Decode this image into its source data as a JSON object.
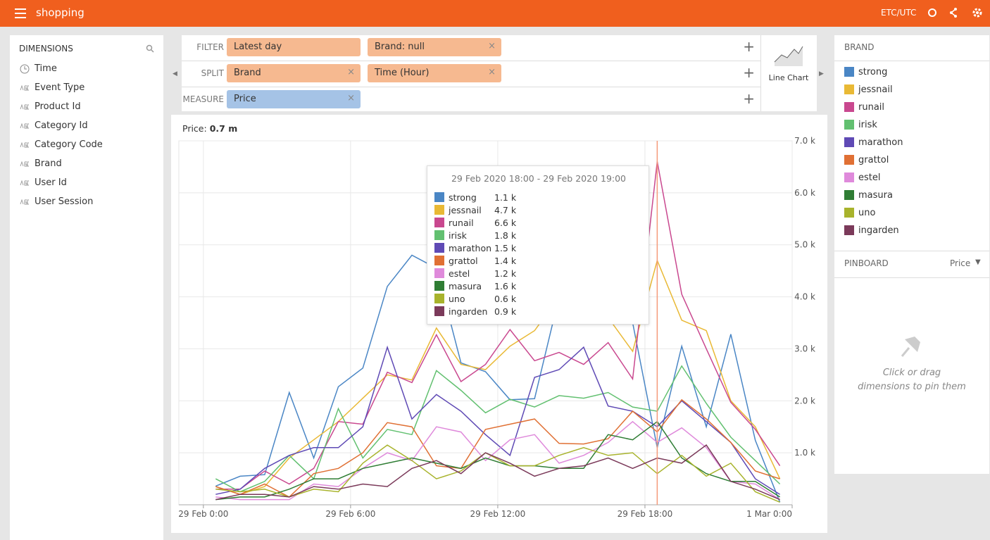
{
  "header": {
    "title": "shopping",
    "timezone": "ETC/UTC"
  },
  "dimensions": {
    "title": "DIMENSIONS",
    "items": [
      "Time",
      "Event Type",
      "Product Id",
      "Category Id",
      "Category Code",
      "Brand",
      "User Id",
      "User Session"
    ]
  },
  "filter_bar": {
    "filter": {
      "label": "FILTER",
      "pills": [
        "Latest day",
        "Brand:  null"
      ]
    },
    "split": {
      "label": "SPLIT",
      "pills": [
        "Brand",
        "Time (Hour)"
      ]
    },
    "measure": {
      "label": "MEASURE",
      "pills": [
        "Price"
      ]
    },
    "visualization": "Line Chart"
  },
  "measure_summary": {
    "label": "Price:",
    "value": "0.7 m"
  },
  "right_panel": {
    "legend_title": "BRAND",
    "pinboard_title": "PINBOARD",
    "pinboard_measure": "Price",
    "pin_hint": "Click or drag dimensions to pin them"
  },
  "chart_data": {
    "type": "line",
    "x": [
      0.5,
      1.5,
      2.5,
      3.5,
      4.5,
      5.5,
      6.5,
      7.5,
      8.5,
      9.5,
      10.5,
      11.5,
      12.5,
      13.5,
      14.5,
      15.5,
      16.5,
      17.5,
      18.5,
      19.5,
      20.5,
      21.5,
      22.5,
      23.5
    ],
    "xlim": [
      -1,
      24
    ],
    "xticks": [
      {
        "value": 0,
        "label": "29 Feb 0:00"
      },
      {
        "value": 6,
        "label": "29 Feb 6:00"
      },
      {
        "value": 12,
        "label": "29 Feb 12:00"
      },
      {
        "value": 18,
        "label": "29 Feb 18:00"
      },
      {
        "value": 24,
        "label": "1 Mar 0:00"
      }
    ],
    "ylim": [
      0,
      7000
    ],
    "yticks": [
      {
        "value": 1000,
        "label": "1.0 k"
      },
      {
        "value": 2000,
        "label": "2.0 k"
      },
      {
        "value": 3000,
        "label": "3.0 k"
      },
      {
        "value": 4000,
        "label": "4.0 k"
      },
      {
        "value": 5000,
        "label": "5.0 k"
      },
      {
        "value": 6000,
        "label": "6.0 k"
      },
      {
        "value": 7000,
        "label": "7.0 k"
      }
    ],
    "grid": true,
    "series": [
      {
        "name": "strong",
        "color": "#4a86c5",
        "values": [
          360,
          550,
          580,
          2160,
          900,
          2270,
          2630,
          4200,
          4800,
          4550,
          2730,
          2560,
          2020,
          2040,
          4000,
          4200,
          4500,
          3500,
          1100,
          3050,
          1500,
          3280,
          1240,
          50
        ]
      },
      {
        "name": "jessnail",
        "color": "#e9b935",
        "values": [
          350,
          200,
          350,
          900,
          1250,
          1600,
          2050,
          2500,
          2400,
          3400,
          2700,
          2600,
          3050,
          3350,
          4000,
          4200,
          3600,
          2950,
          4700,
          3550,
          3350,
          2000,
          1500,
          500
        ]
      },
      {
        "name": "runail",
        "color": "#c9488f",
        "values": [
          300,
          300,
          650,
          400,
          700,
          1600,
          1550,
          2550,
          2350,
          3270,
          2370,
          2700,
          3370,
          2770,
          2930,
          2700,
          3120,
          2420,
          6600,
          4050,
          3000,
          1970,
          1450,
          750
        ]
      },
      {
        "name": "irisk",
        "color": "#62c070",
        "values": [
          500,
          250,
          450,
          950,
          500,
          1850,
          900,
          1450,
          1350,
          2580,
          2200,
          1770,
          2030,
          1880,
          2100,
          2050,
          2160,
          1880,
          1800,
          2670,
          1950,
          1300,
          850,
          400
        ]
      },
      {
        "name": "marathon",
        "color": "#5f4ab5",
        "values": [
          200,
          300,
          700,
          950,
          1100,
          1100,
          1500,
          3030,
          1650,
          2120,
          1800,
          1350,
          950,
          2450,
          2600,
          3030,
          1900,
          1800,
          1500,
          2000,
          1600,
          1200,
          500,
          200
        ]
      },
      {
        "name": "grattol",
        "color": "#e07034",
        "values": [
          350,
          200,
          400,
          150,
          600,
          700,
          1000,
          1580,
          1500,
          750,
          700,
          1450,
          1550,
          1650,
          1180,
          1170,
          1270,
          1800,
          1400,
          2020,
          1650,
          1200,
          650,
          500
        ]
      },
      {
        "name": "estel",
        "color": "#df8adb",
        "values": [
          150,
          100,
          100,
          100,
          400,
          350,
          700,
          1000,
          850,
          1500,
          1400,
          850,
          1250,
          1350,
          800,
          950,
          1200,
          1600,
          1200,
          1480,
          1100,
          450,
          400,
          100
        ]
      },
      {
        "name": "masura",
        "color": "#2f7d34",
        "values": [
          100,
          150,
          150,
          300,
          500,
          500,
          700,
          800,
          900,
          800,
          700,
          900,
          750,
          750,
          700,
          700,
          1350,
          1250,
          1600,
          900,
          600,
          450,
          450,
          150
        ]
      },
      {
        "name": "uno",
        "color": "#a8b32c",
        "values": [
          300,
          250,
          300,
          150,
          300,
          250,
          800,
          1150,
          850,
          500,
          650,
          1000,
          750,
          750,
          950,
          1100,
          950,
          1000,
          600,
          950,
          550,
          800,
          250,
          50
        ]
      },
      {
        "name": "ingarden",
        "color": "#7b3a5a",
        "values": [
          100,
          200,
          200,
          150,
          350,
          300,
          400,
          350,
          700,
          850,
          600,
          1000,
          800,
          550,
          700,
          750,
          900,
          700,
          900,
          800,
          1150,
          450,
          300,
          100
        ]
      }
    ],
    "tooltip": {
      "x": 18.5,
      "title": "29 Feb 2020 18:00 - 29 Feb 2020 19:00",
      "value_labels": [
        "1.1 k",
        "4.7 k",
        "6.6 k",
        "1.8 k",
        "1.5 k",
        "1.4 k",
        "1.2 k",
        "1.6 k",
        "0.6 k",
        "0.9 k"
      ]
    }
  }
}
